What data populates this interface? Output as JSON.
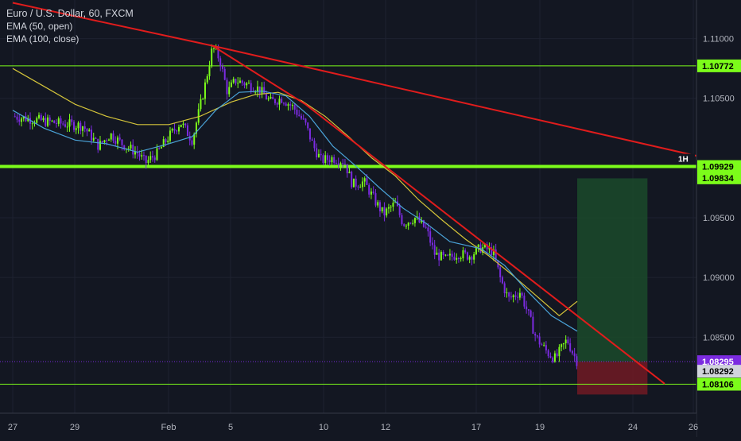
{
  "legend": {
    "title": "Euro / U.S. Dollar, 60, FXCM",
    "ema1": "EMA (50, open)",
    "ema2": "EMA (100, close)"
  },
  "colors": {
    "background": "#131722",
    "bull_candle": "#7CFC1A",
    "bear_candle": "#7B2BE0",
    "ema_50": "#4aa3d8",
    "ema_100": "#d4c43a",
    "trendline": "#e01c1c",
    "horizontal_level": "#7CFC1A",
    "target_zone": "#1b4a2a",
    "stop_zone": "#6b1a24",
    "price_line": "#7B2BE0"
  },
  "chart_data": {
    "type": "candlestick",
    "symbol": "Euro / U.S. Dollar",
    "timeframe": "60",
    "source": "FXCM",
    "x_tick_labels": [
      "27",
      "29",
      "Feb",
      "5",
      "10",
      "12",
      "17",
      "19",
      "24",
      "26"
    ],
    "y_tick_labels": [
      "1.11000",
      "1.10500",
      "1.09500",
      "1.09000",
      "1.08500"
    ],
    "y_range": [
      1.0785,
      1.1135
    ],
    "price_labels": {
      "level_upper": "1.10772",
      "level_1h": "1.09929",
      "level_1h_tag": "1H",
      "entry": "1.09834",
      "last_price": "1.08295",
      "last_close": "1.08292",
      "level_lower": "1.08106"
    },
    "horizontal_levels": [
      1.10772,
      1.09929,
      1.08106
    ],
    "price_path": [
      [
        0,
        1.1035
      ],
      [
        3,
        1.1032
      ],
      [
        6,
        1.1029
      ],
      [
        9,
        1.1027
      ],
      [
        11,
        1.101
      ],
      [
        12.5,
        1.102
      ],
      [
        14,
        1.1012
      ],
      [
        16,
        1.1004
      ],
      [
        17,
        1.0996
      ],
      [
        18.5,
        1.1004
      ],
      [
        20,
        1.1018
      ],
      [
        21.5,
        1.103
      ],
      [
        23,
        1.1015
      ],
      [
        24.6,
        1.106
      ],
      [
        25.6,
        1.1093
      ],
      [
        26.5,
        1.1083
      ],
      [
        27.5,
        1.1055
      ],
      [
        28.5,
        1.1065
      ],
      [
        30,
        1.1062
      ],
      [
        31.5,
        1.1058
      ],
      [
        33,
        1.1047
      ],
      [
        34.5,
        1.105
      ],
      [
        36,
        1.1042
      ],
      [
        37.5,
        1.1028
      ],
      [
        38.5,
        1.101
      ],
      [
        39.5,
        1.0998
      ],
      [
        41,
        1.1
      ],
      [
        42.5,
        1.0997
      ],
      [
        43.5,
        1.0978
      ],
      [
        45,
        1.098
      ],
      [
        46.5,
        1.0963
      ],
      [
        47.5,
        1.0953
      ],
      [
        49,
        1.0962
      ],
      [
        50,
        1.0945
      ],
      [
        51.5,
        1.095
      ],
      [
        53,
        1.094
      ],
      [
        54,
        1.092
      ],
      [
        55.5,
        1.0915
      ],
      [
        57,
        1.092
      ],
      [
        58.5,
        1.0918
      ],
      [
        60,
        1.0925
      ],
      [
        61.5,
        1.0922
      ],
      [
        62.5,
        1.0898
      ],
      [
        63.5,
        1.0882
      ],
      [
        65,
        1.0888
      ],
      [
        66,
        1.087
      ],
      [
        67,
        1.085
      ],
      [
        68.5,
        1.0837
      ],
      [
        69.5,
        1.0832
      ],
      [
        71,
        1.0848
      ],
      [
        71.8,
        1.0836
      ],
      [
        72.3,
        1.08295
      ]
    ],
    "ema_50": [
      [
        0,
        1.104
      ],
      [
        4,
        1.1025
      ],
      [
        8,
        1.1015
      ],
      [
        12,
        1.1012
      ],
      [
        16,
        1.1005
      ],
      [
        20,
        1.1012
      ],
      [
        23,
        1.1018
      ],
      [
        26,
        1.104
      ],
      [
        29,
        1.1055
      ],
      [
        32,
        1.1056
      ],
      [
        35,
        1.1052
      ],
      [
        38,
        1.1035
      ],
      [
        41,
        1.101
      ],
      [
        44,
        1.0993
      ],
      [
        47,
        1.0975
      ],
      [
        50,
        1.0958
      ],
      [
        53,
        1.0945
      ],
      [
        56,
        1.093
      ],
      [
        60,
        1.0924
      ],
      [
        63,
        1.091
      ],
      [
        66,
        1.0888
      ],
      [
        69,
        1.0868
      ],
      [
        72.3,
        1.0855
      ]
    ],
    "ema_100": [
      [
        0,
        1.1075
      ],
      [
        4,
        1.106
      ],
      [
        8,
        1.1045
      ],
      [
        12,
        1.1035
      ],
      [
        16,
        1.1028
      ],
      [
        20,
        1.1028
      ],
      [
        24,
        1.1035
      ],
      [
        28,
        1.1047
      ],
      [
        31,
        1.1053
      ],
      [
        34,
        1.1055
      ],
      [
        37,
        1.1048
      ],
      [
        40,
        1.1035
      ],
      [
        43,
        1.1018
      ],
      [
        46,
        1.1
      ],
      [
        49,
        1.0985
      ],
      [
        52,
        1.0965
      ],
      [
        55,
        1.0948
      ],
      [
        58,
        1.0932
      ],
      [
        61,
        1.0918
      ],
      [
        64,
        1.0902
      ],
      [
        67,
        1.0885
      ],
      [
        70,
        1.0868
      ],
      [
        72.3,
        1.088
      ]
    ],
    "trendlines": [
      {
        "points": [
          [
            0,
            1.113
          ],
          [
            25.6,
            1.1094
          ],
          [
            91.5,
            1.0996
          ]
        ]
      },
      {
        "points": [
          [
            25.6,
            1.1094
          ],
          [
            37.5,
            1.1045
          ],
          [
            83.5,
            1.0811
          ]
        ]
      }
    ],
    "position": {
      "x_start": 72.3,
      "x_end": 81.3,
      "entry": 1.0983,
      "target": 1.08295,
      "stop": 1.0802
    }
  }
}
